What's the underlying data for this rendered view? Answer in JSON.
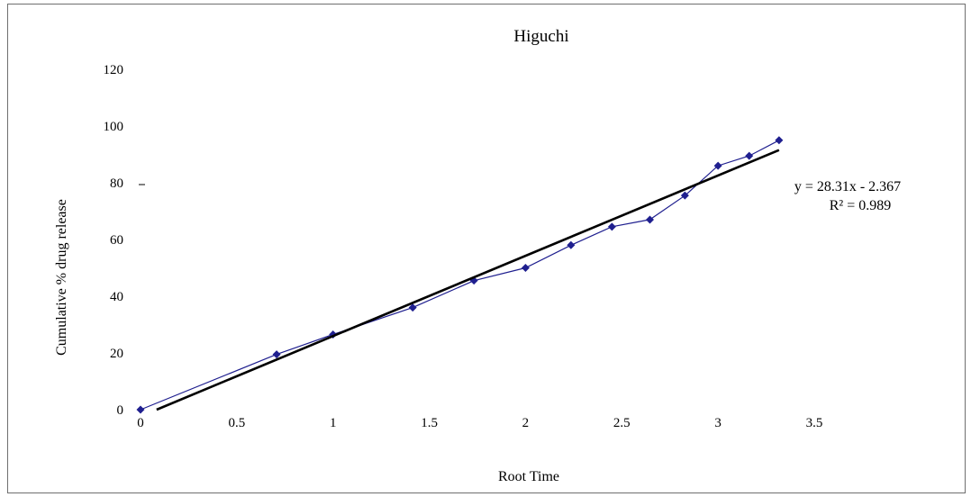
{
  "chart_data": {
    "type": "scatter",
    "title": "Higuchi",
    "xlabel": "Root Time",
    "ylabel": "Cumulative % drug release",
    "xlim": [
      0,
      3.5
    ],
    "ylim": [
      0,
      120
    ],
    "x_ticks": [
      "0",
      "0.5",
      "1",
      "1.5",
      "2",
      "2.5",
      "3",
      "3.5"
    ],
    "y_ticks": [
      "0",
      "20",
      "40",
      "60",
      "80",
      "100",
      "120"
    ],
    "grid": false,
    "series": [
      {
        "x": [
          0,
          0.707,
          1.0,
          1.414,
          1.732,
          2.0,
          2.236,
          2.449,
          2.646,
          2.828,
          3.0,
          3.162,
          3.317
        ],
        "y": [
          0,
          19.5,
          26.5,
          36.0,
          45.5,
          50.0,
          58.0,
          64.5,
          67.0,
          75.5,
          86.0,
          89.5,
          95.0
        ],
        "color": "#1f1f8f",
        "marker": "diamond"
      }
    ],
    "trendline": {
      "slope": 28.31,
      "intercept": -2.367,
      "color": "#000000"
    },
    "annotations": {
      "equation": "y = 28.31x - 2.367",
      "r_squared": "R² = 0.989"
    }
  }
}
